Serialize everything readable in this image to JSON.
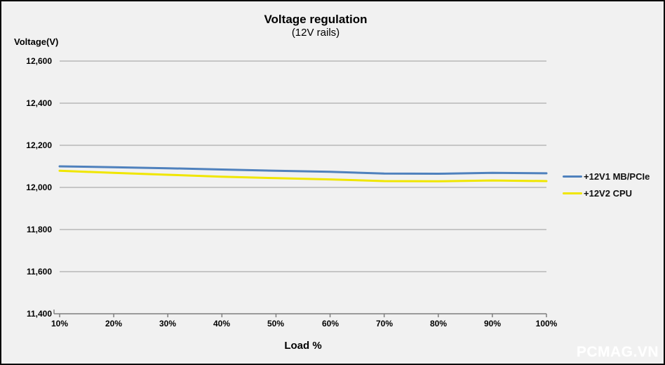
{
  "title": "Voltage regulation",
  "subtitle": "(12V rails)",
  "y_axis_title": "Voltage(V)",
  "x_axis_title": "Load %",
  "watermark": "PCMAG.VN",
  "colors": {
    "background": "#f1f1f1",
    "frame_border": "#0a0a0a",
    "gridline": "#9a9a9a",
    "axis": "#7f7f7f",
    "series_blue": "#4f81bd",
    "series_yellow": "#f0e600",
    "watermark": "#ffffff"
  },
  "y_ticks": [
    "12,600",
    "12,400",
    "12,200",
    "12,000",
    "11,800",
    "11,600",
    "11,400"
  ],
  "x_ticks": [
    "10%",
    "20%",
    "30%",
    "40%",
    "50%",
    "60%",
    "70%",
    "80%",
    "90%",
    "100%"
  ],
  "legend": [
    {
      "label": "+12V1 MB/PCIe",
      "color": "#4f81bd"
    },
    {
      "label": "+12V2 CPU",
      "color": "#f0e600"
    }
  ],
  "chart_data": {
    "type": "line",
    "title": "Voltage regulation (12V rails)",
    "xlabel": "Load %",
    "ylabel": "Voltage(V)",
    "categories": [
      "10%",
      "20%",
      "30%",
      "40%",
      "50%",
      "60%",
      "70%",
      "80%",
      "90%",
      "100%"
    ],
    "ylim": [
      11400,
      12600
    ],
    "y_tick_step": 200,
    "grid": true,
    "legend_position": "right",
    "series": [
      {
        "name": "+12V1 MB/PCIe",
        "color": "#4f81bd",
        "values": [
          12100,
          12096,
          12091,
          12085,
          12079,
          12074,
          12066,
          12065,
          12069,
          12067
        ]
      },
      {
        "name": "+12V2 CPU",
        "color": "#f0e600",
        "values": [
          12079,
          12069,
          12060,
          12051,
          12044,
          12038,
          12030,
          12029,
          12033,
          12030
        ]
      }
    ]
  }
}
